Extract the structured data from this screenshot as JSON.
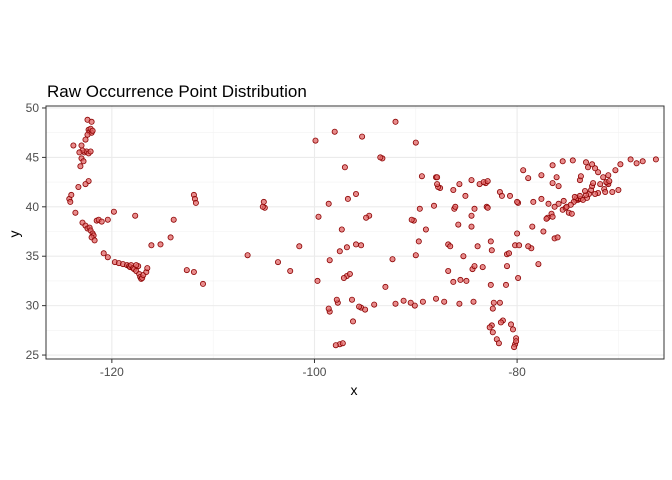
{
  "chart_data": {
    "type": "scatter",
    "title": "Raw Occurrence Point Distribution",
    "xlabel": "x",
    "ylabel": "y",
    "xlim": [
      -126.5,
      -65.5
    ],
    "ylim": [
      24.6,
      50.2
    ],
    "x_ticks": [
      -120,
      -100,
      -80
    ],
    "x_tick_labels": [
      "-120",
      "-100",
      "-80"
    ],
    "y_ticks": [
      25,
      30,
      35,
      40,
      45,
      50
    ],
    "y_tick_labels": [
      "25",
      "30",
      "35",
      "40",
      "45",
      "50"
    ],
    "grid": true,
    "legend": "none",
    "point_fill": "#e06666",
    "point_stroke": "#8b0000",
    "points": [
      [
        -122.4,
        48.8
      ],
      [
        -122.0,
        48.6
      ],
      [
        -122.3,
        47.8
      ],
      [
        -122.2,
        47.6
      ],
      [
        -122.0,
        47.5
      ],
      [
        -122.4,
        47.3
      ],
      [
        -122.1,
        47.9
      ],
      [
        -121.9,
        47.7
      ],
      [
        -122.6,
        46.8
      ],
      [
        -123.0,
        46.2
      ],
      [
        -123.8,
        46.2
      ],
      [
        -122.7,
        45.5
      ],
      [
        -122.5,
        45.6
      ],
      [
        -122.3,
        45.4
      ],
      [
        -122.1,
        45.6
      ],
      [
        -122.9,
        45.7
      ],
      [
        -123.2,
        45.5
      ],
      [
        -123.0,
        44.9
      ],
      [
        -122.8,
        44.6
      ],
      [
        -123.1,
        44.1
      ],
      [
        -122.3,
        42.6
      ],
      [
        -122.6,
        42.3
      ],
      [
        -123.3,
        42.0
      ],
      [
        -124.2,
        40.8
      ],
      [
        -124.0,
        41.2
      ],
      [
        -124.1,
        40.5
      ],
      [
        -123.6,
        39.4
      ],
      [
        -122.9,
        38.4
      ],
      [
        -122.6,
        38.1
      ],
      [
        -122.4,
        37.8
      ],
      [
        -122.2,
        37.9
      ],
      [
        -122.1,
        37.6
      ],
      [
        -121.9,
        37.3
      ],
      [
        -121.8,
        37.1
      ],
      [
        -122.0,
        36.9
      ],
      [
        -121.7,
        36.6
      ],
      [
        -121.5,
        38.6
      ],
      [
        -121.3,
        38.7
      ],
      [
        -121.0,
        38.5
      ],
      [
        -120.4,
        38.7
      ],
      [
        -119.8,
        39.5
      ],
      [
        -119.7,
        34.4
      ],
      [
        -119.3,
        34.3
      ],
      [
        -118.9,
        34.2
      ],
      [
        -118.5,
        34.1
      ],
      [
        -118.3,
        34.0
      ],
      [
        -118.2,
        33.9
      ],
      [
        -118.1,
        34.1
      ],
      [
        -117.9,
        33.8
      ],
      [
        -117.8,
        33.7
      ],
      [
        -117.6,
        33.5
      ],
      [
        -117.3,
        33.2
      ],
      [
        -117.2,
        32.9
      ],
      [
        -117.1,
        32.7
      ],
      [
        -117.0,
        32.8
      ],
      [
        -116.9,
        33.1
      ],
      [
        -116.6,
        33.4
      ],
      [
        -116.5,
        33.8
      ],
      [
        -117.4,
        34.0
      ],
      [
        -117.6,
        34.1
      ],
      [
        -120.4,
        34.9
      ],
      [
        -120.8,
        35.3
      ],
      [
        -117.7,
        39.1
      ],
      [
        -116.1,
        36.1
      ],
      [
        -115.2,
        36.2
      ],
      [
        -114.2,
        36.9
      ],
      [
        -113.9,
        38.7
      ],
      [
        -112.6,
        33.6
      ],
      [
        -111.9,
        33.4
      ],
      [
        -111.0,
        32.2
      ],
      [
        -111.9,
        41.2
      ],
      [
        -111.8,
        40.8
      ],
      [
        -111.7,
        40.4
      ],
      [
        -105.0,
        40.5
      ],
      [
        -104.9,
        39.9
      ],
      [
        -105.1,
        40.0
      ],
      [
        -106.6,
        35.1
      ],
      [
        -103.6,
        34.4
      ],
      [
        -102.4,
        33.5
      ],
      [
        -99.9,
        46.7
      ],
      [
        -98.0,
        47.6
      ],
      [
        -95.3,
        47.1
      ],
      [
        -92.0,
        48.6
      ],
      [
        -93.3,
        44.9
      ],
      [
        -93.5,
        45.0
      ],
      [
        -90.0,
        46.5
      ],
      [
        -97.0,
        44.0
      ],
      [
        -95.9,
        41.3
      ],
      [
        -96.7,
        40.8
      ],
      [
        -98.6,
        40.3
      ],
      [
        -99.6,
        39.0
      ],
      [
        -94.6,
        39.1
      ],
      [
        -94.9,
        38.9
      ],
      [
        -97.3,
        37.7
      ],
      [
        -95.4,
        36.1
      ],
      [
        -95.9,
        36.2
      ],
      [
        -96.8,
        35.9
      ],
      [
        -97.5,
        35.5
      ],
      [
        -98.5,
        34.6
      ],
      [
        -99.7,
        32.5
      ],
      [
        -101.5,
        36.0
      ],
      [
        -96.8,
        33.0
      ],
      [
        -97.1,
        32.8
      ],
      [
        -96.5,
        33.2
      ],
      [
        -95.4,
        29.8
      ],
      [
        -95.0,
        29.6
      ],
      [
        -95.6,
        29.9
      ],
      [
        -97.7,
        30.3
      ],
      [
        -98.5,
        29.4
      ],
      [
        -98.6,
        29.7
      ],
      [
        -97.8,
        30.6
      ],
      [
        -96.3,
        30.6
      ],
      [
        -94.1,
        30.1
      ],
      [
        -93.0,
        31.9
      ],
      [
        -97.5,
        26.1
      ],
      [
        -97.2,
        26.2
      ],
      [
        -97.9,
        26.0
      ],
      [
        -96.2,
        28.4
      ],
      [
        -92.0,
        30.2
      ],
      [
        -90.1,
        30.0
      ],
      [
        -89.3,
        30.4
      ],
      [
        -91.2,
        30.5
      ],
      [
        -90.5,
        30.3
      ],
      [
        -92.3,
        34.7
      ],
      [
        -90.0,
        35.1
      ],
      [
        -89.7,
        36.5
      ],
      [
        -88.0,
        30.7
      ],
      [
        -87.2,
        30.4
      ],
      [
        -86.8,
        33.5
      ],
      [
        -86.3,
        32.4
      ],
      [
        -85.6,
        32.6
      ],
      [
        -85.0,
        32.5
      ],
      [
        -84.4,
        33.7
      ],
      [
        -84.2,
        34.0
      ],
      [
        -83.4,
        33.9
      ],
      [
        -82.6,
        32.1
      ],
      [
        -81.1,
        32.1
      ],
      [
        -81.7,
        30.3
      ],
      [
        -82.4,
        29.7
      ],
      [
        -82.5,
        28.0
      ],
      [
        -82.7,
        27.8
      ],
      [
        -81.4,
        28.5
      ],
      [
        -81.6,
        28.3
      ],
      [
        -80.6,
        28.1
      ],
      [
        -80.1,
        26.7
      ],
      [
        -80.2,
        26.1
      ],
      [
        -80.3,
        25.8
      ],
      [
        -80.1,
        26.4
      ],
      [
        -82.0,
        26.6
      ],
      [
        -81.8,
        26.2
      ],
      [
        -82.4,
        27.3
      ],
      [
        -80.4,
        27.6
      ],
      [
        -82.3,
        30.3
      ],
      [
        -84.3,
        30.4
      ],
      [
        -85.7,
        30.2
      ],
      [
        -90.2,
        38.6
      ],
      [
        -90.4,
        38.7
      ],
      [
        -89.0,
        37.7
      ],
      [
        -88.2,
        40.1
      ],
      [
        -89.6,
        39.8
      ],
      [
        -87.6,
        41.9
      ],
      [
        -87.8,
        42.0
      ],
      [
        -87.9,
        42.3
      ],
      [
        -88.0,
        43.0
      ],
      [
        -89.4,
        43.1
      ],
      [
        -87.9,
        43.0
      ],
      [
        -86.2,
        39.8
      ],
      [
        -86.1,
        40.0
      ],
      [
        -85.1,
        41.1
      ],
      [
        -86.3,
        41.7
      ],
      [
        -85.7,
        42.3
      ],
      [
        -84.5,
        42.7
      ],
      [
        -83.7,
        42.3
      ],
      [
        -83.1,
        42.4
      ],
      [
        -83.3,
        42.5
      ],
      [
        -82.9,
        42.6
      ],
      [
        -84.5,
        39.1
      ],
      [
        -84.2,
        39.8
      ],
      [
        -83.0,
        40.0
      ],
      [
        -82.9,
        39.9
      ],
      [
        -81.7,
        41.5
      ],
      [
        -81.5,
        41.1
      ],
      [
        -80.7,
        41.1
      ],
      [
        -84.5,
        38.0
      ],
      [
        -85.8,
        38.2
      ],
      [
        -86.8,
        36.2
      ],
      [
        -86.6,
        36.0
      ],
      [
        -85.3,
        35.0
      ],
      [
        -83.9,
        36.0
      ],
      [
        -82.6,
        36.5
      ],
      [
        -82.5,
        35.6
      ],
      [
        -81.0,
        35.2
      ],
      [
        -80.8,
        35.3
      ],
      [
        -80.2,
        36.1
      ],
      [
        -79.8,
        36.1
      ],
      [
        -78.6,
        35.8
      ],
      [
        -78.9,
        36.0
      ],
      [
        -77.9,
        34.2
      ],
      [
        -79.9,
        32.8
      ],
      [
        -81.0,
        34.0
      ],
      [
        -80.0,
        37.3
      ],
      [
        -78.5,
        38.0
      ],
      [
        -77.4,
        37.5
      ],
      [
        -76.3,
        36.8
      ],
      [
        -76.0,
        36.9
      ],
      [
        -77.0,
        38.9
      ],
      [
        -77.1,
        38.8
      ],
      [
        -76.6,
        39.3
      ],
      [
        -76.5,
        39.0
      ],
      [
        -75.5,
        39.7
      ],
      [
        -75.2,
        39.9
      ],
      [
        -75.1,
        40.0
      ],
      [
        -75.4,
        40.6
      ],
      [
        -76.3,
        40.0
      ],
      [
        -76.9,
        40.3
      ],
      [
        -77.6,
        40.8
      ],
      [
        -78.4,
        40.5
      ],
      [
        -79.9,
        40.4
      ],
      [
        -80.0,
        40.5
      ],
      [
        -79.4,
        43.7
      ],
      [
        -78.9,
        42.9
      ],
      [
        -77.6,
        43.2
      ],
      [
        -76.1,
        43.0
      ],
      [
        -75.9,
        42.1
      ],
      [
        -76.5,
        42.4
      ],
      [
        -74.0,
        40.7
      ],
      [
        -73.9,
        40.8
      ],
      [
        -74.2,
        40.7
      ],
      [
        -74.4,
        40.5
      ],
      [
        -74.7,
        40.2
      ],
      [
        -74.1,
        40.9
      ],
      [
        -73.7,
        40.8
      ],
      [
        -73.5,
        40.7
      ],
      [
        -73.1,
        40.9
      ],
      [
        -72.9,
        41.3
      ],
      [
        -72.7,
        41.7
      ],
      [
        -72.6,
        42.1
      ],
      [
        -73.2,
        41.2
      ],
      [
        -73.8,
        41.1
      ],
      [
        -73.8,
        42.7
      ],
      [
        -73.7,
        43.1
      ],
      [
        -72.5,
        42.4
      ],
      [
        -71.8,
        42.3
      ],
      [
        -71.4,
        41.8
      ],
      [
        -71.1,
        42.4
      ],
      [
        -71.0,
        42.3
      ],
      [
        -71.2,
        42.5
      ],
      [
        -70.9,
        42.6
      ],
      [
        -71.5,
        43.0
      ],
      [
        -71.0,
        43.2
      ],
      [
        -70.3,
        43.7
      ],
      [
        -69.8,
        44.3
      ],
      [
        -68.8,
        44.8
      ],
      [
        -68.2,
        44.4
      ],
      [
        -67.6,
        44.6
      ],
      [
        -72.0,
        43.5
      ],
      [
        -73.2,
        44.5
      ],
      [
        -72.6,
        44.3
      ],
      [
        -72.3,
        43.9
      ],
      [
        -73.0,
        44.0
      ],
      [
        -74.5,
        44.7
      ],
      [
        -75.5,
        44.6
      ],
      [
        -76.5,
        44.2
      ],
      [
        -66.3,
        44.8
      ],
      [
        -70.0,
        41.7
      ],
      [
        -70.6,
        41.5
      ],
      [
        -71.3,
        41.5
      ],
      [
        -72.0,
        41.4
      ],
      [
        -72.3,
        41.3
      ],
      [
        -73.3,
        41.6
      ],
      [
        -74.3,
        41.0
      ],
      [
        -74.9,
        39.4
      ],
      [
        -74.6,
        39.3
      ],
      [
        -75.9,
        40.3
      ]
    ]
  }
}
